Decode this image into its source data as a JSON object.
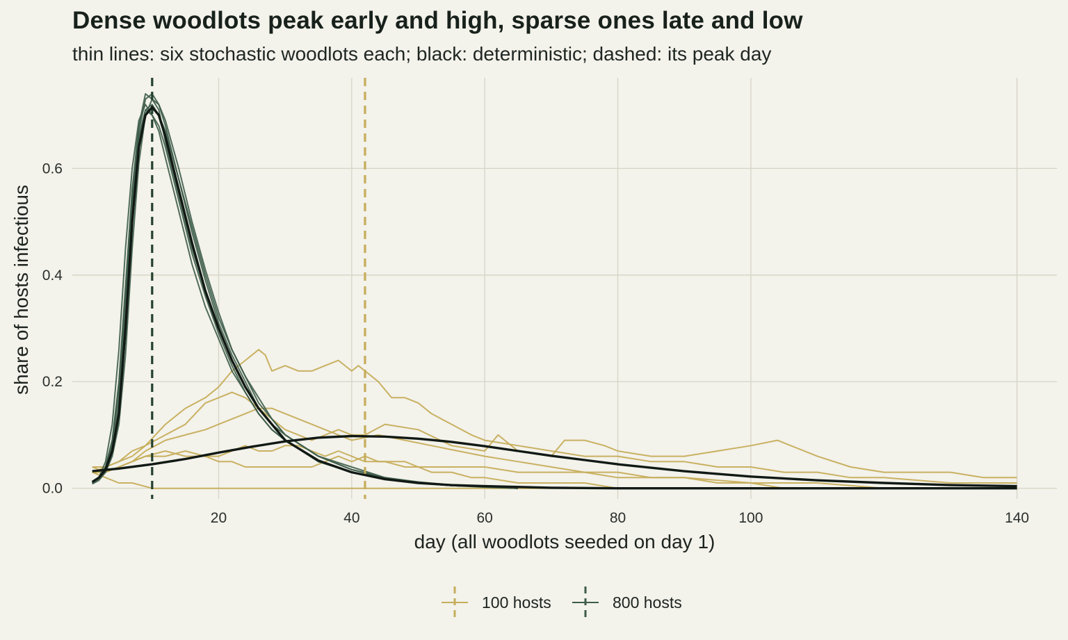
{
  "title": "Dense woodlots peak early and high, sparse ones late and low",
  "subtitle": "thin lines: six stochastic woodlots each; black: deterministic; dashed: its peak day",
  "colors": {
    "background": "#f3f2eb",
    "grid": "#d7d5c6",
    "hosts_100": "#c6ad5a",
    "hosts_800": "#3d5c49",
    "deterministic": "#111915",
    "vline_800": "#22402f"
  },
  "chart_data": {
    "type": "line",
    "xlabel": "day (all woodlots seeded on day 1)",
    "ylabel": "share of hosts infectious",
    "xlim": [
      -2,
      146
    ],
    "ylim": [
      -0.02,
      0.77
    ],
    "xticks": [
      20,
      40,
      60,
      80,
      100,
      140
    ],
    "yticks": [
      0.0,
      0.2,
      0.4,
      0.6
    ],
    "x_gridlines": [
      20,
      40,
      60,
      80,
      100,
      140
    ],
    "grid": true,
    "legend_position": "bottom",
    "legend": [
      {
        "label": "100 hosts",
        "color_key": "hosts_100"
      },
      {
        "label": "800 hosts",
        "color_key": "hosts_800"
      }
    ],
    "peak_day_lines": [
      {
        "group": "100 hosts",
        "x": 42
      },
      {
        "group": "800 hosts",
        "x": 10
      }
    ],
    "deterministic_lines": [
      {
        "group": "100 hosts",
        "x": [
          1,
          5,
          10,
          15,
          20,
          25,
          30,
          35,
          40,
          45,
          50,
          55,
          60,
          65,
          70,
          75,
          80,
          90,
          100,
          110,
          120,
          130,
          140
        ],
        "y": [
          0.032,
          0.037,
          0.045,
          0.055,
          0.067,
          0.078,
          0.088,
          0.095,
          0.098,
          0.097,
          0.093,
          0.087,
          0.079,
          0.07,
          0.061,
          0.053,
          0.045,
          0.032,
          0.022,
          0.015,
          0.01,
          0.006,
          0.004
        ]
      },
      {
        "group": "800 hosts",
        "x": [
          1,
          2,
          3,
          4,
          5,
          6,
          7,
          8,
          9,
          10,
          11,
          12,
          14,
          16,
          18,
          20,
          22,
          24,
          26,
          28,
          30,
          35,
          40,
          45,
          50,
          55,
          60,
          70,
          80,
          100,
          140
        ],
        "y": [
          0.012,
          0.02,
          0.035,
          0.07,
          0.14,
          0.3,
          0.5,
          0.64,
          0.7,
          0.715,
          0.7,
          0.66,
          0.56,
          0.46,
          0.37,
          0.3,
          0.24,
          0.19,
          0.15,
          0.12,
          0.09,
          0.052,
          0.03,
          0.017,
          0.01,
          0.006,
          0.004,
          0.001,
          0.0,
          0.0,
          0.0
        ]
      }
    ],
    "series": [
      {
        "group": "800 hosts",
        "x": [
          1,
          2,
          3,
          4,
          5,
          6,
          7,
          8,
          9,
          10,
          11,
          12,
          14,
          16,
          18,
          20,
          22,
          24,
          26,
          28,
          30,
          35,
          40,
          45,
          50,
          55,
          60,
          65
        ],
        "y": [
          0.01,
          0.02,
          0.04,
          0.09,
          0.2,
          0.38,
          0.56,
          0.68,
          0.74,
          0.73,
          0.71,
          0.65,
          0.55,
          0.45,
          0.37,
          0.3,
          0.24,
          0.19,
          0.15,
          0.12,
          0.09,
          0.05,
          0.03,
          0.02,
          0.01,
          0.005,
          0.003,
          0.0
        ]
      },
      {
        "group": "800 hosts",
        "x": [
          1,
          2,
          3,
          4,
          5,
          6,
          7,
          8,
          9,
          10,
          11,
          12,
          14,
          16,
          18,
          20,
          22,
          24,
          26,
          28,
          30,
          35,
          40,
          45,
          50,
          55,
          60,
          65
        ],
        "y": [
          0.01,
          0.02,
          0.03,
          0.06,
          0.12,
          0.25,
          0.45,
          0.61,
          0.7,
          0.73,
          0.72,
          0.68,
          0.58,
          0.48,
          0.39,
          0.31,
          0.25,
          0.2,
          0.15,
          0.12,
          0.1,
          0.06,
          0.035,
          0.02,
          0.01,
          0.005,
          0.003,
          0.0
        ]
      },
      {
        "group": "800 hosts",
        "x": [
          1,
          2,
          3,
          4,
          5,
          6,
          7,
          8,
          9,
          10,
          11,
          12,
          14,
          16,
          18,
          20,
          22,
          24,
          26,
          28,
          30,
          35,
          40,
          45,
          50,
          55,
          60,
          65
        ],
        "y": [
          0.01,
          0.02,
          0.05,
          0.12,
          0.26,
          0.45,
          0.6,
          0.69,
          0.72,
          0.7,
          0.67,
          0.62,
          0.52,
          0.42,
          0.34,
          0.28,
          0.22,
          0.18,
          0.14,
          0.11,
          0.09,
          0.05,
          0.03,
          0.02,
          0.01,
          0.005,
          0.003,
          0.0
        ]
      },
      {
        "group": "800 hosts",
        "x": [
          1,
          2,
          3,
          4,
          5,
          6,
          7,
          8,
          9,
          10,
          11,
          12,
          14,
          16,
          18,
          20,
          22,
          24,
          26,
          28,
          30,
          35,
          40,
          45,
          50,
          55,
          60,
          65
        ],
        "y": [
          0.008,
          0.015,
          0.03,
          0.07,
          0.15,
          0.32,
          0.52,
          0.65,
          0.71,
          0.72,
          0.7,
          0.67,
          0.58,
          0.49,
          0.4,
          0.32,
          0.26,
          0.21,
          0.17,
          0.13,
          0.1,
          0.06,
          0.04,
          0.02,
          0.012,
          0.006,
          0.003,
          0.0
        ]
      },
      {
        "group": "800 hosts",
        "x": [
          1,
          2,
          3,
          4,
          5,
          6,
          7,
          8,
          9,
          10,
          11,
          12,
          14,
          16,
          18,
          20,
          22,
          24,
          26,
          28,
          30,
          35,
          40,
          45,
          50,
          55,
          60,
          65
        ],
        "y": [
          0.01,
          0.018,
          0.04,
          0.09,
          0.19,
          0.37,
          0.55,
          0.67,
          0.73,
          0.74,
          0.72,
          0.69,
          0.6,
          0.5,
          0.41,
          0.33,
          0.26,
          0.21,
          0.16,
          0.13,
          0.1,
          0.06,
          0.035,
          0.02,
          0.01,
          0.005,
          0.003,
          0.0
        ]
      },
      {
        "group": "800 hosts",
        "x": [
          1,
          2,
          3,
          4,
          5,
          6,
          7,
          8,
          9,
          10,
          11,
          12,
          14,
          16,
          18,
          20,
          22,
          24,
          26,
          28,
          30,
          35,
          40,
          45,
          50,
          55,
          60,
          65
        ],
        "y": [
          0.01,
          0.02,
          0.04,
          0.08,
          0.17,
          0.34,
          0.53,
          0.66,
          0.71,
          0.7,
          0.68,
          0.64,
          0.54,
          0.44,
          0.36,
          0.29,
          0.23,
          0.18,
          0.14,
          0.11,
          0.09,
          0.05,
          0.03,
          0.018,
          0.01,
          0.005,
          0.002,
          0.0
        ]
      },
      {
        "group": "100 hosts",
        "x": [
          1,
          3,
          5,
          7,
          9,
          12,
          15,
          18,
          20,
          22,
          24,
          26,
          27,
          28,
          30,
          32,
          34,
          36,
          38,
          40,
          41,
          42,
          44,
          46,
          48,
          50,
          52,
          55,
          58,
          60,
          65,
          70,
          75,
          80,
          85,
          90,
          95,
          100,
          105,
          110,
          115,
          120,
          130,
          140
        ],
        "y": [
          0.03,
          0.04,
          0.05,
          0.06,
          0.08,
          0.12,
          0.15,
          0.17,
          0.19,
          0.22,
          0.24,
          0.26,
          0.25,
          0.22,
          0.23,
          0.22,
          0.22,
          0.23,
          0.24,
          0.22,
          0.23,
          0.22,
          0.2,
          0.17,
          0.17,
          0.16,
          0.14,
          0.12,
          0.1,
          0.09,
          0.08,
          0.07,
          0.06,
          0.06,
          0.05,
          0.05,
          0.04,
          0.04,
          0.03,
          0.03,
          0.02,
          0.02,
          0.01,
          0.01
        ]
      },
      {
        "group": "100 hosts",
        "x": [
          1,
          3,
          5,
          7,
          9,
          12,
          15,
          18,
          20,
          22,
          24,
          26,
          28,
          30,
          32,
          34,
          36,
          38,
          40,
          42,
          45,
          50,
          55,
          60,
          62,
          65,
          70,
          72,
          75,
          78,
          80,
          85,
          90,
          95,
          100,
          104,
          106,
          110,
          115,
          120,
          125,
          130,
          135,
          140
        ],
        "y": [
          0.04,
          0.04,
          0.05,
          0.07,
          0.08,
          0.1,
          0.12,
          0.16,
          0.17,
          0.18,
          0.17,
          0.15,
          0.13,
          0.11,
          0.1,
          0.09,
          0.1,
          0.11,
          0.1,
          0.1,
          0.12,
          0.11,
          0.08,
          0.07,
          0.1,
          0.07,
          0.06,
          0.09,
          0.09,
          0.08,
          0.07,
          0.06,
          0.06,
          0.07,
          0.08,
          0.09,
          0.08,
          0.06,
          0.04,
          0.03,
          0.03,
          0.03,
          0.02,
          0.02
        ]
      },
      {
        "group": "100 hosts",
        "x": [
          1,
          3,
          5,
          7,
          9,
          12,
          15,
          18,
          20,
          22,
          24,
          26,
          28,
          30,
          32,
          34,
          36,
          38,
          40,
          44,
          48,
          52,
          56,
          60,
          65,
          70,
          75,
          80,
          85,
          90,
          100,
          110,
          120,
          130,
          140
        ],
        "y": [
          0.03,
          0.03,
          0.04,
          0.05,
          0.07,
          0.09,
          0.1,
          0.11,
          0.12,
          0.13,
          0.14,
          0.15,
          0.15,
          0.14,
          0.13,
          0.12,
          0.11,
          0.1,
          0.09,
          0.1,
          0.09,
          0.08,
          0.07,
          0.06,
          0.05,
          0.04,
          0.03,
          0.03,
          0.02,
          0.02,
          0.01,
          0.01,
          0.0,
          0.0,
          0.0
        ]
      },
      {
        "group": "100 hosts",
        "x": [
          1,
          3,
          5,
          7,
          10,
          13,
          16,
          19,
          22,
          25,
          28,
          31,
          34,
          37,
          40,
          43,
          46,
          50,
          55,
          60,
          65,
          70,
          75,
          80,
          90,
          100,
          110,
          120,
          140
        ],
        "y": [
          0.03,
          0.02,
          0.01,
          0.01,
          0.0,
          0.0,
          0.0,
          0.0,
          0.0,
          0.0,
          0.0,
          0.0,
          0.0,
          0.0,
          0.0,
          0.0,
          0.0,
          0.0,
          0.0,
          0.0,
          0.0,
          0.0,
          0.0,
          0.0,
          0.0,
          0.0,
          0.0,
          0.0,
          0.0
        ]
      },
      {
        "group": "100 hosts",
        "x": [
          1,
          3,
          5,
          7,
          9,
          12,
          15,
          18,
          20,
          22,
          24,
          26,
          28,
          30,
          32,
          34,
          36,
          38,
          40,
          42,
          45,
          48,
          50,
          52,
          55,
          58,
          60,
          65,
          70,
          75,
          80
        ],
        "y": [
          0.04,
          0.03,
          0.04,
          0.05,
          0.06,
          0.06,
          0.07,
          0.06,
          0.06,
          0.07,
          0.08,
          0.07,
          0.07,
          0.08,
          0.08,
          0.07,
          0.06,
          0.07,
          0.06,
          0.05,
          0.05,
          0.04,
          0.04,
          0.03,
          0.03,
          0.02,
          0.02,
          0.01,
          0.01,
          0.01,
          0.0
        ]
      },
      {
        "group": "100 hosts",
        "x": [
          1,
          3,
          5,
          7,
          9,
          12,
          15,
          18,
          20,
          22,
          24,
          26,
          28,
          30,
          32,
          34,
          36,
          38,
          40,
          42,
          44,
          46,
          48,
          50,
          55,
          60,
          65,
          70,
          75,
          80,
          85,
          90,
          95,
          100,
          105
        ],
        "y": [
          0.03,
          0.03,
          0.04,
          0.05,
          0.06,
          0.07,
          0.06,
          0.06,
          0.05,
          0.05,
          0.04,
          0.04,
          0.04,
          0.04,
          0.04,
          0.04,
          0.05,
          0.06,
          0.05,
          0.06,
          0.05,
          0.05,
          0.05,
          0.04,
          0.04,
          0.04,
          0.03,
          0.03,
          0.03,
          0.02,
          0.02,
          0.02,
          0.01,
          0.01,
          0.0
        ]
      }
    ]
  }
}
